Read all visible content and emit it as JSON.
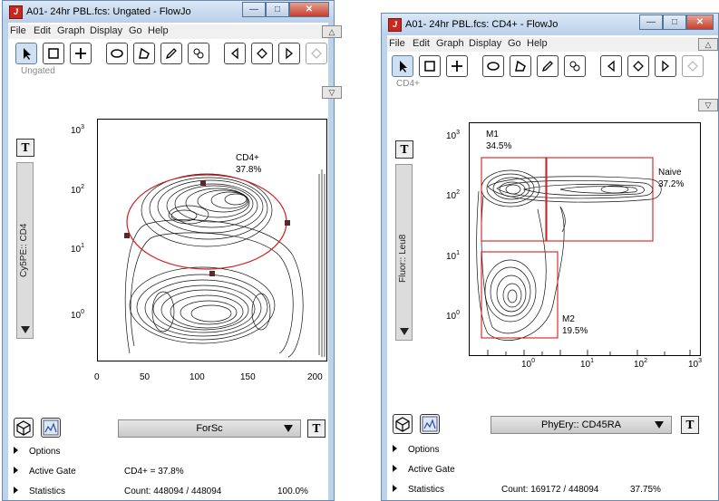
{
  "win1": {
    "title": "A01- 24hr PBL.fcs: Ungated - FlowJo",
    "menu": [
      "File",
      "Edit",
      "Graph",
      "Display",
      "Go",
      "Help"
    ],
    "gate_label": "Ungated",
    "y_param": "Cy5PE:: CD4",
    "x_param": "ForSc",
    "y_ticks": [
      "10",
      "10",
      "10",
      "10"
    ],
    "y_tick_exps": [
      "3",
      "2",
      "1",
      "0"
    ],
    "x_ticks": [
      "0",
      "50",
      "100",
      "150",
      "200"
    ],
    "gate_name": "CD4+",
    "gate_pct": "37.8%",
    "options_label": "Options",
    "active_gate_label": "Active Gate",
    "active_gate_value": "CD4+ = 37.8%",
    "statistics_label": "Statistics",
    "count": "Count: 448094 / 448094",
    "count_pct": "100.0%"
  },
  "win2": {
    "title": "A01- 24hr PBL.fcs: CD4+ - FlowJo",
    "menu": [
      "File",
      "Edit",
      "Graph",
      "Display",
      "Go",
      "Help"
    ],
    "gate_label": "CD4+",
    "y_param": "Fluor:: Leu8",
    "x_param": "PhyEry:: CD45RA",
    "y_ticks": [
      "10",
      "10",
      "10",
      "10"
    ],
    "y_tick_exps": [
      "3",
      "2",
      "1",
      "0"
    ],
    "x_ticks": [
      "10",
      "10",
      "10",
      "10"
    ],
    "x_tick_exps": [
      "0",
      "1",
      "2",
      "3"
    ],
    "gates": [
      {
        "name": "M1",
        "pct": "34.5%"
      },
      {
        "name": "Naive",
        "pct": "37.2%"
      },
      {
        "name": "M2",
        "pct": "19.5%"
      }
    ],
    "options_label": "Options",
    "active_gate_label": "Active Gate",
    "statistics_label": "Statistics",
    "count": "Count: 169172 / 448094",
    "count_pct": "37.75%"
  },
  "colors": {
    "title_bar": "#bcd3ea",
    "close_button": "#c4402c",
    "gate": "#d22020",
    "gate_handle": "#5a2a2a"
  }
}
